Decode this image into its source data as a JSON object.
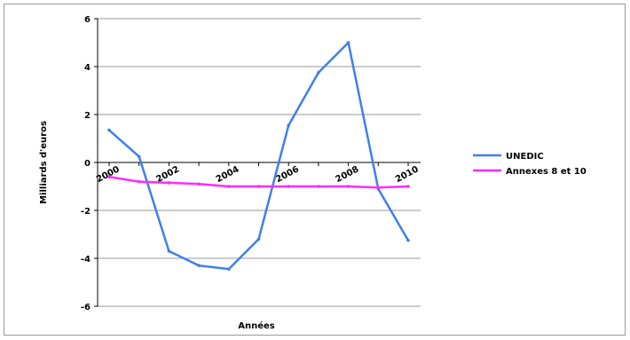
{
  "chart_data": {
    "type": "line",
    "xlabel": "Années",
    "ylabel": "Milliards d'euros",
    "ylim": [
      -6,
      6
    ],
    "yticks": [
      "6",
      "4",
      "2",
      "0",
      "-2",
      "-4",
      "-6"
    ],
    "x": [
      2000,
      2001,
      2002,
      2003,
      2004,
      2005,
      2006,
      2007,
      2008,
      2009,
      2010
    ],
    "xtick_labels": [
      "2000",
      "2002",
      "2004",
      "2006",
      "2008",
      "2010"
    ],
    "grid": true,
    "legend_position": "right",
    "series": [
      {
        "name": "UNEDIC",
        "color": "#3e7ff0",
        "values": [
          1.35,
          0.25,
          -3.7,
          -4.3,
          -4.45,
          -3.2,
          1.55,
          3.75,
          5.0,
          -1.1,
          -3.25
        ]
      },
      {
        "name": "Annexes 8 et 10",
        "color": "#ff2aff",
        "values": [
          -0.6,
          -0.8,
          -0.85,
          -0.9,
          -1.0,
          -1.0,
          -1.0,
          -1.0,
          -1.0,
          -1.05,
          -1.0
        ]
      }
    ]
  }
}
